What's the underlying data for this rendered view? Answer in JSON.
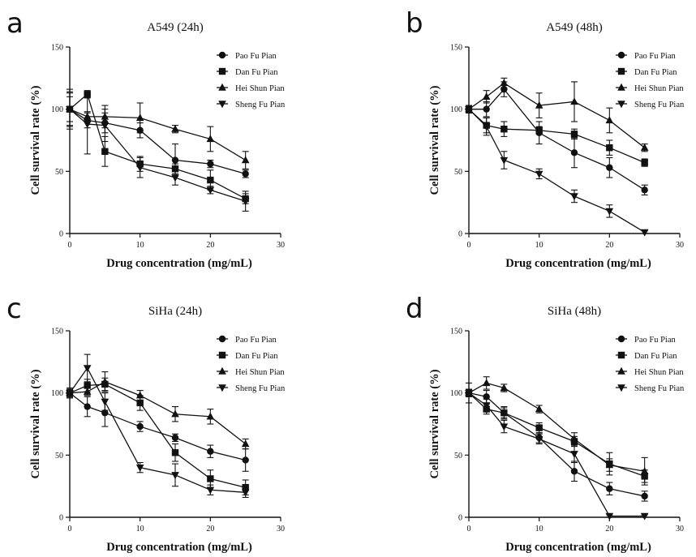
{
  "figure": {
    "panel_letters": [
      "a",
      "b",
      "c",
      "d"
    ]
  },
  "chart_data": [
    {
      "type": "line",
      "panel": "a",
      "title": "A549 (24h)",
      "xlabel": "Drug concentration (mg/mL)",
      "ylabel": "Cell survival rate (%)",
      "xlim": [
        0,
        30
      ],
      "ylim": [
        0,
        150
      ],
      "xticks": [
        0,
        10,
        20,
        30
      ],
      "yticks": [
        0,
        50,
        100,
        150
      ],
      "x": [
        0,
        2.5,
        5,
        10,
        15,
        20,
        25
      ],
      "legend_position": "top-right",
      "series": [
        {
          "name": "Pao Fu Pian",
          "marker": "circle",
          "values": [
            100,
            91,
            89,
            83,
            59,
            56,
            48
          ],
          "errors": [
            10,
            6,
            8,
            6,
            13,
            3,
            3
          ]
        },
        {
          "name": "Dan Fu Pian",
          "marker": "square",
          "values": [
            100,
            112,
            66,
            56,
            52,
            43,
            28
          ],
          "errors": [
            13,
            3,
            12,
            6,
            4,
            8,
            4
          ]
        },
        {
          "name": "Hei Shun Pian",
          "marker": "triangle-up",
          "values": [
            100,
            94,
            94,
            93,
            84,
            76,
            59
          ],
          "errors": [
            14,
            4,
            9,
            12,
            3,
            10,
            7
          ]
        },
        {
          "name": "Sheng Fu Pian",
          "marker": "triangle-down",
          "values": [
            100,
            88,
            87,
            53,
            45,
            35,
            26
          ],
          "errors": [
            16,
            24,
            13,
            8,
            6,
            3,
            8
          ]
        }
      ]
    },
    {
      "type": "line",
      "panel": "b",
      "title": "A549 (48h)",
      "xlabel": "Drug concentration (mg/mL)",
      "ylabel": "Cell survival rate (%)",
      "xlim": [
        0,
        30
      ],
      "ylim": [
        0,
        150
      ],
      "xticks": [
        0,
        10,
        20,
        30
      ],
      "yticks": [
        0,
        50,
        100,
        150
      ],
      "x": [
        0,
        2.5,
        5,
        10,
        15,
        20,
        25
      ],
      "legend_position": "top-right",
      "series": [
        {
          "name": "Pao Fu Pian",
          "marker": "circle",
          "values": [
            100,
            100,
            116,
            81,
            65,
            53,
            35
          ],
          "errors": [
            3,
            6,
            6,
            9,
            12,
            8,
            4
          ]
        },
        {
          "name": "Dan Fu Pian",
          "marker": "square",
          "values": [
            100,
            87,
            84,
            83,
            80,
            69,
            57
          ],
          "errors": [
            2,
            6,
            6,
            3,
            4,
            6,
            3
          ]
        },
        {
          "name": "Hei Shun Pian",
          "marker": "triangle-up",
          "values": [
            100,
            110,
            121,
            103,
            106,
            91,
            69
          ],
          "errors": [
            3,
            5,
            4,
            10,
            16,
            10,
            3
          ]
        },
        {
          "name": "Sheng Fu Pian",
          "marker": "triangle-down",
          "values": [
            100,
            86,
            59,
            48,
            30,
            18,
            1
          ],
          "errors": [
            3,
            7,
            7,
            4,
            5,
            5,
            1
          ]
        }
      ]
    },
    {
      "type": "line",
      "panel": "c",
      "title": "SiHa (24h)",
      "xlabel": "Drug concentration (mg/mL)",
      "ylabel": "Cell survival rate (%)",
      "xlim": [
        0,
        30
      ],
      "ylim": [
        0,
        150
      ],
      "xticks": [
        0,
        10,
        20,
        30
      ],
      "yticks": [
        0,
        50,
        100,
        150
      ],
      "x": [
        0,
        2.5,
        5,
        10,
        15,
        20,
        25
      ],
      "legend_position": "top-right",
      "series": [
        {
          "name": "Pao Fu Pian",
          "marker": "circle",
          "values": [
            100,
            89,
            84,
            73,
            64,
            53,
            46
          ],
          "errors": [
            4,
            8,
            11,
            4,
            3,
            5,
            9
          ]
        },
        {
          "name": "Dan Fu Pian",
          "marker": "square",
          "values": [
            100,
            106,
            107,
            92,
            52,
            31,
            24
          ],
          "errors": [
            3,
            5,
            5,
            6,
            7,
            7,
            6
          ]
        },
        {
          "name": "Hei Shun Pian",
          "marker": "triangle-up",
          "values": [
            100,
            101,
            109,
            98,
            83,
            81,
            59
          ],
          "errors": [
            3,
            3,
            8,
            4,
            6,
            6,
            4
          ]
        },
        {
          "name": "Sheng Fu Pian",
          "marker": "triangle-down",
          "values": [
            100,
            120,
            93,
            40,
            34,
            22,
            20
          ],
          "errors": [
            4,
            11,
            7,
            4,
            9,
            4,
            4
          ]
        }
      ]
    },
    {
      "type": "line",
      "panel": "d",
      "title": "SiHa (48h)",
      "xlabel": "Drug concentration (mg/mL)",
      "ylabel": "Cell survival rate (%)",
      "xlim": [
        0,
        30
      ],
      "ylim": [
        0,
        150
      ],
      "xticks": [
        0,
        10,
        20,
        30
      ],
      "yticks": [
        0,
        50,
        100,
        150
      ],
      "x": [
        0,
        2.5,
        5,
        10,
        15,
        20,
        25
      ],
      "legend_position": "top-right",
      "series": [
        {
          "name": "Pao Fu Pian",
          "marker": "circle",
          "values": [
            100,
            97,
            84,
            64,
            37,
            23,
            17
          ],
          "errors": [
            3,
            5,
            4,
            4,
            8,
            5,
            4
          ]
        },
        {
          "name": "Dan Fu Pian",
          "marker": "square",
          "values": [
            100,
            87,
            84,
            72,
            61,
            43,
            33
          ],
          "errors": [
            3,
            4,
            5,
            4,
            4,
            9,
            5
          ]
        },
        {
          "name": "Hei Shun Pian",
          "marker": "triangle-up",
          "values": [
            100,
            108,
            104,
            87,
            63,
            42,
            37
          ],
          "errors": [
            3,
            5,
            3,
            3,
            5,
            5,
            11
          ]
        },
        {
          "name": "Sheng Fu Pian",
          "marker": "triangle-down",
          "values": [
            100,
            90,
            73,
            63,
            51,
            1,
            1
          ],
          "errors": [
            8,
            5,
            5,
            4,
            7,
            1,
            1
          ]
        }
      ]
    }
  ]
}
